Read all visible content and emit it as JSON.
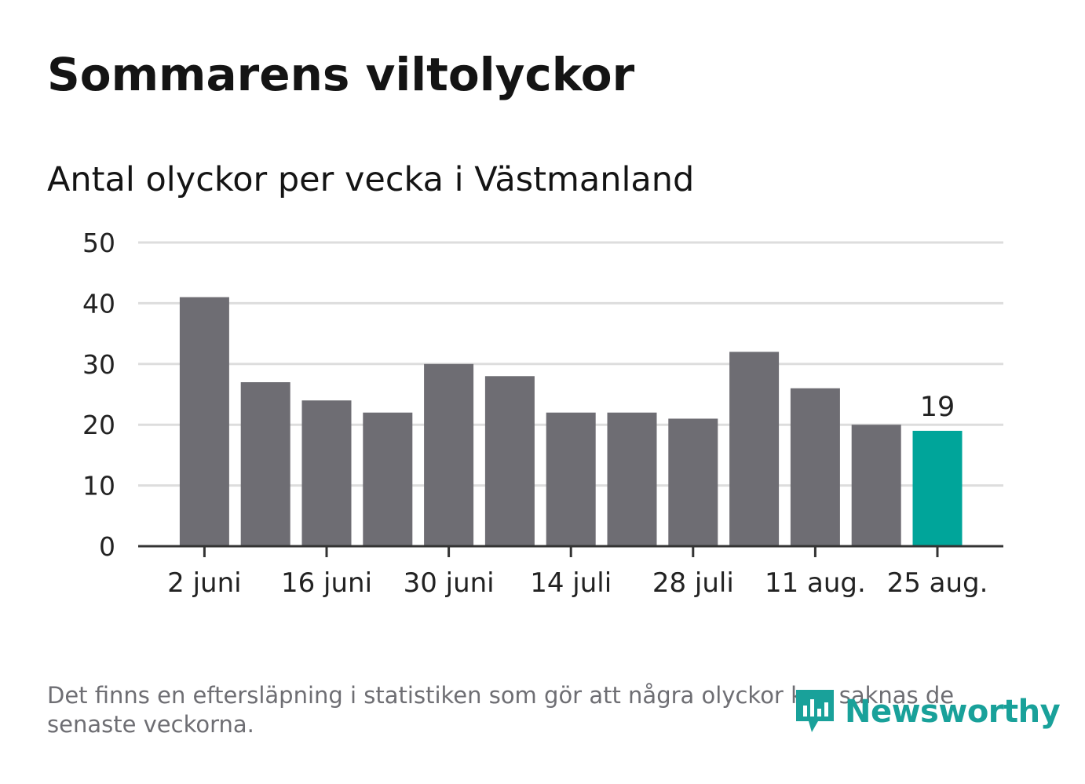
{
  "title": "Sommarens viltolyckor",
  "subtitle": "Antal olyckor per vecka i Västmanland",
  "footnote": "Det finns en eftersläpning i statistiken som gör att några olyckor kan saknas de senaste veckorna.",
  "logo": {
    "text": "Newsworthy",
    "icon": "newsworthy-logo-icon"
  },
  "colors": {
    "bar": "#6e6d73",
    "highlight": "#00a59a",
    "grid": "#dddddd",
    "axis": "#333333",
    "text": "#222222"
  },
  "chart_data": {
    "type": "bar",
    "categories": [
      "2 juni",
      "",
      "16 juni",
      "",
      "30 juni",
      "",
      "14 juli",
      "",
      "28 juli",
      "",
      "11 aug.",
      "",
      "25 aug."
    ],
    "values": [
      41,
      27,
      24,
      22,
      30,
      28,
      22,
      22,
      21,
      32,
      26,
      20,
      19
    ],
    "highlight_index": 12,
    "data_labels": {
      "12": "19"
    },
    "x_tick_labels": [
      "2 juni",
      "16 juni",
      "30 juni",
      "14 juli",
      "28 juli",
      "11 aug.",
      "25 aug."
    ],
    "y_ticks": [
      0,
      10,
      20,
      30,
      40,
      50
    ],
    "ylim": [
      0,
      50
    ],
    "grid": true,
    "legend": "none"
  }
}
